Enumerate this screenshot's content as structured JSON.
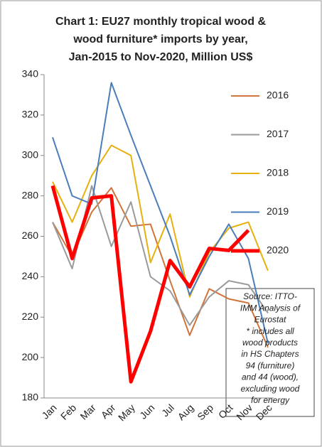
{
  "chart_data": {
    "type": "line",
    "title": [
      "Chart 1: EU27 monthly tropical wood &",
      "wood furniture* imports by year,",
      "Jan-2015 to Nov-2020, Million US$"
    ],
    "categories": [
      "Jan",
      "Feb",
      "Mar",
      "Apr",
      "May",
      "Jun",
      "Jul",
      "Aug",
      "Sep",
      "Oct",
      "Nov",
      "Dec"
    ],
    "series": [
      {
        "name": "2016",
        "color": "#d0743a",
        "width": 2,
        "values": [
          267,
          250,
          272,
          284,
          265,
          266,
          238,
          211,
          234,
          229,
          227,
          205
        ]
      },
      {
        "name": "2017",
        "color": "#9a9a9a",
        "width": 2,
        "values": [
          267,
          244,
          285,
          255,
          277,
          240,
          233,
          216,
          230,
          238,
          236,
          222
        ]
      },
      {
        "name": "2018",
        "color": "#e6b00e",
        "width": 2,
        "values": [
          287,
          267,
          290,
          305,
          300,
          247,
          271,
          230,
          252,
          264,
          267,
          243
        ]
      },
      {
        "name": "2019",
        "color": "#4a7ebb",
        "width": 2,
        "values": [
          309,
          280,
          276,
          336,
          310,
          285,
          260,
          231,
          250,
          266,
          249,
          207
        ]
      },
      {
        "name": "2020",
        "color": "#ff0000",
        "width": 5,
        "values": [
          285,
          249,
          279,
          280,
          188,
          213,
          248,
          235,
          254,
          253,
          263,
          null
        ]
      }
    ],
    "ylim": [
      180,
      340
    ],
    "yticks": [
      180,
      200,
      220,
      240,
      260,
      280,
      300,
      320,
      340
    ],
    "source_note": [
      "Source: ITTO-",
      "IMM Analysis of",
      "Eurostat",
      "* includes all",
      "wood products",
      "in HS Chapters",
      "94 (furniture)",
      "and 44 (wood),",
      "excluding wood",
      "for energy"
    ]
  }
}
